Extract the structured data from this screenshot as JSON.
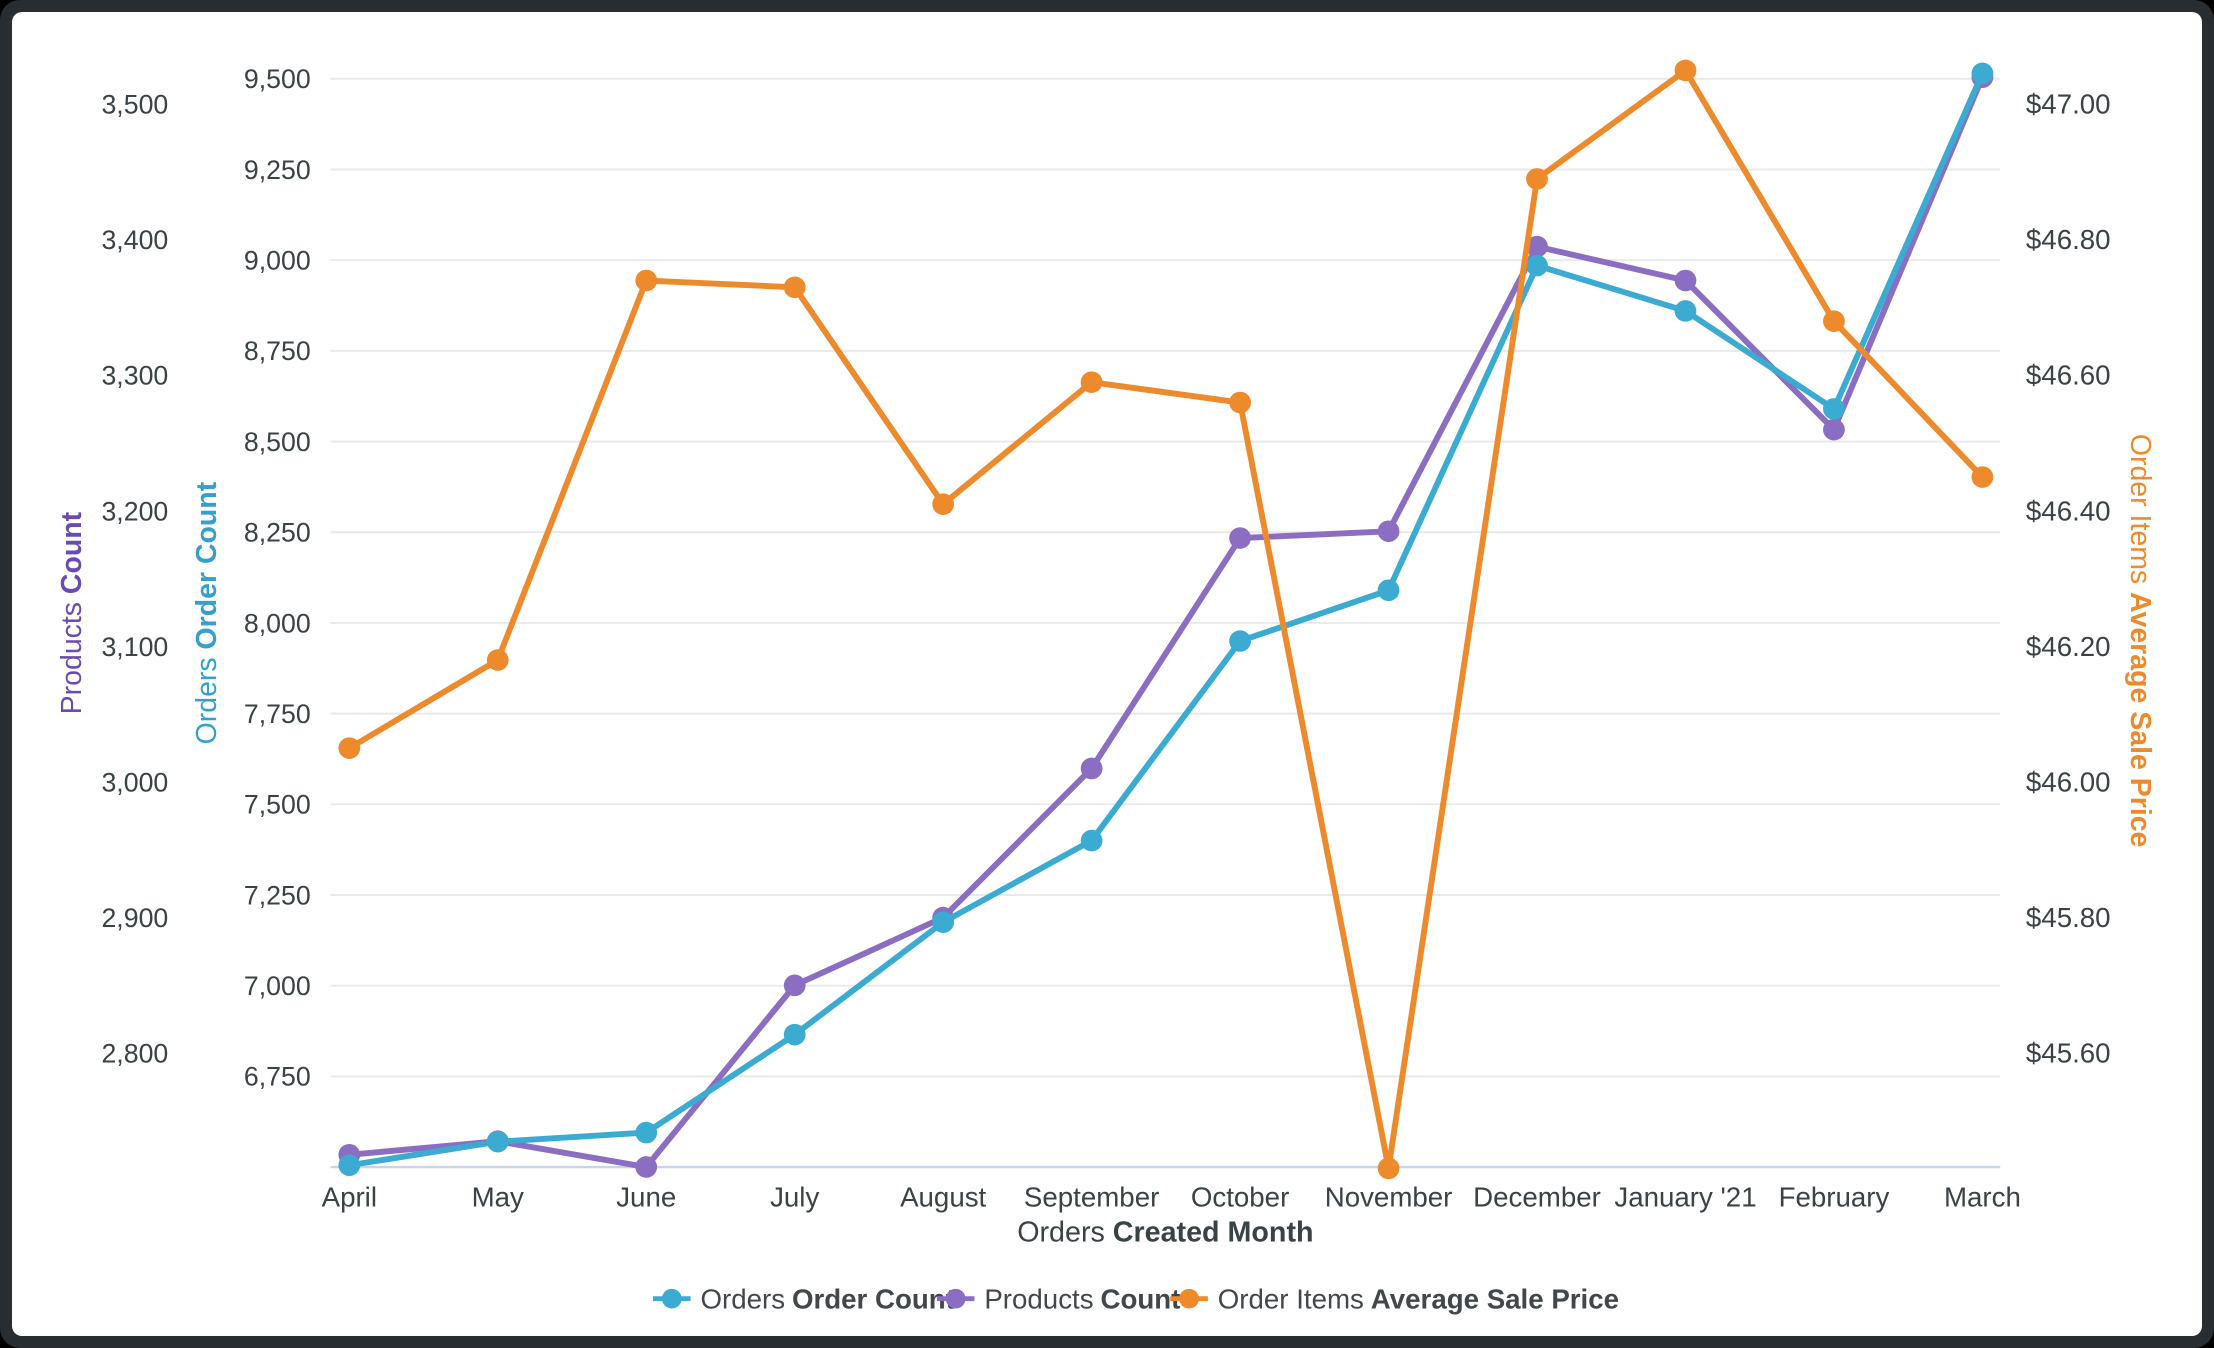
{
  "chart_data": {
    "type": "line",
    "grid": "horizontal",
    "legend_position": "bottom",
    "background": "#FFFFFF",
    "categories": [
      "April",
      "May",
      "June",
      "July",
      "August",
      "September",
      "October",
      "November",
      "December",
      "January '21",
      "February",
      "March"
    ],
    "x_axis": {
      "title_normal": "Orders",
      "title_bold": "Created Month"
    },
    "axes": {
      "orders": {
        "title_normal": "Orders",
        "title_bold": "Order Count",
        "color": "#35A0CB",
        "side": "left-inner",
        "range": [
          6500,
          9600
        ],
        "tick_values": [
          6750,
          7000,
          7250,
          7500,
          7750,
          8000,
          8250,
          8500,
          8750,
          9000,
          9250,
          9500
        ],
        "tick_labels": [
          "6,750",
          "7,000",
          "7,250",
          "7,500",
          "7,750",
          "8,000",
          "8,250",
          "8,500",
          "8,750",
          "9,000",
          "9,250",
          "9,500"
        ]
      },
      "products": {
        "title_normal": "Products",
        "title_bold": "Count",
        "color": "#6C4AB5",
        "side": "left-outer",
        "range": [
          2716,
          3550
        ],
        "tick_values": [
          2800,
          2900,
          3000,
          3100,
          3200,
          3300,
          3400,
          3500
        ],
        "tick_labels": [
          "2,800",
          "2,900",
          "3,000",
          "3,100",
          "3,200",
          "3,300",
          "3,400",
          "3,500"
        ]
      },
      "price": {
        "title_normal": "Order Items",
        "title_bold": "Average Sale Price",
        "color": "#ED8A2C",
        "side": "right",
        "range": [
          45.43,
          47.1
        ],
        "tick_values": [
          45.6,
          45.8,
          46.0,
          46.2,
          46.4,
          46.6,
          46.8,
          47.0
        ],
        "tick_labels": [
          "$45.60",
          "$45.80",
          "$46.00",
          "$46.20",
          "$46.40",
          "$46.60",
          "$46.80",
          "$47.00"
        ]
      }
    },
    "series": [
      {
        "id": "orders",
        "legend_normal": "Orders",
        "legend_bold": "Order Count",
        "axis": "orders",
        "color": "#3BABD2",
        "values": [
          6505,
          6570,
          6595,
          6865,
          7175,
          7400,
          7950,
          8090,
          8985,
          8860,
          8590,
          9515
        ]
      },
      {
        "id": "products",
        "legend_normal": "Products",
        "legend_bold": "Count",
        "axis": "products",
        "color": "#8B6EC1",
        "values": [
          2725,
          2735,
          2716,
          2850,
          2900,
          3010,
          3180,
          3185,
          3395,
          3370,
          3260,
          3520
        ]
      },
      {
        "id": "price",
        "legend_normal": "Order Items",
        "legend_bold": "Average Sale Price",
        "axis": "price",
        "color": "#ED8A2C",
        "values": [
          46.05,
          46.18,
          46.74,
          46.73,
          46.41,
          46.59,
          46.56,
          45.43,
          46.89,
          47.05,
          46.68,
          46.45
        ]
      }
    ]
  }
}
